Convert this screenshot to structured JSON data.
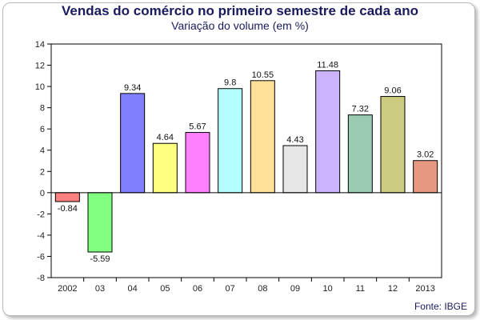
{
  "chart_data": {
    "type": "bar",
    "title": "Vendas do comércio no primeiro semestre de cada ano",
    "subtitle": "Variação do volume (em %)",
    "source": "Fonte: IBGE",
    "xlabel": "",
    "ylabel": "",
    "categories": [
      "2002",
      "03",
      "04",
      "05",
      "06",
      "07",
      "08",
      "09",
      "10",
      "11",
      "12",
      "2013"
    ],
    "values": [
      -0.84,
      -5.59,
      9.34,
      4.64,
      5.67,
      9.8,
      10.55,
      4.43,
      11.48,
      7.32,
      9.06,
      3.02
    ],
    "value_labels": [
      "-0.84",
      "-5.59",
      "9.34",
      "4.64",
      "5.67",
      "9.8",
      "10.55",
      "4.43",
      "11.48",
      "7.32",
      "9.06",
      "3.02"
    ],
    "colors": [
      "#ff8080",
      "#80ff80",
      "#8080ff",
      "#ffff80",
      "#ff80ff",
      "#b3ffff",
      "#ffe099",
      "#e6e6e6",
      "#ccb3ff",
      "#99ccb3",
      "#cccc80",
      "#e69980"
    ],
    "ylim": [
      -8,
      14
    ],
    "yticks": [
      -8,
      -6,
      -4,
      -2,
      0,
      2,
      4,
      6,
      8,
      10,
      12,
      14
    ],
    "grid": false,
    "legend": "none"
  }
}
